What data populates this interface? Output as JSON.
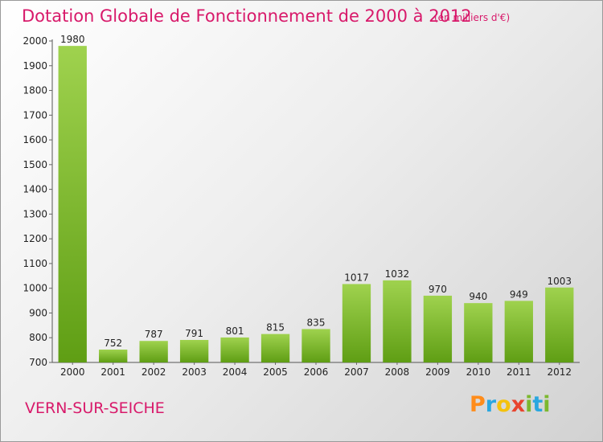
{
  "header": {
    "title": "Dotation Globale de Fonctionnement de 2000 à 2012",
    "unit": "(en milliers d'€)"
  },
  "footer": {
    "commune": "VERN-SUR-SEICHE",
    "brand": {
      "letters": [
        "P",
        "r",
        "o",
        "x",
        "i",
        "t",
        "i"
      ],
      "colors": [
        "#ff8c1a",
        "#2aa7e0",
        "#f4c20d",
        "#e8442e",
        "#7cb82f",
        "#2aa7e0",
        "#7cb82f"
      ]
    }
  },
  "colors": {
    "title": "#d8196a",
    "bar_light": "#9fd24e",
    "bar_dark": "#5f9e14",
    "axis": "#555555",
    "grid_tick": "#666666"
  },
  "chart_data": {
    "type": "bar",
    "title": "Dotation Globale de Fonctionnement de 2000 à 2012",
    "subtitle": "(en milliers d'€)",
    "categories": [
      "2000",
      "2001",
      "2002",
      "2003",
      "2004",
      "2005",
      "2006",
      "2007",
      "2008",
      "2009",
      "2010",
      "2011",
      "2012"
    ],
    "values": [
      1980,
      752,
      787,
      791,
      801,
      815,
      835,
      1017,
      1032,
      970,
      940,
      949,
      1003
    ],
    "data_labels": [
      "1980",
      "752",
      "787",
      "791",
      "801",
      "815",
      "835",
      "1017",
      "1032",
      "970",
      "940",
      "949",
      "1003"
    ],
    "ylim": [
      700,
      2000
    ],
    "yticks": [
      700,
      800,
      900,
      1000,
      1100,
      1200,
      1300,
      1400,
      1500,
      1600,
      1700,
      1800,
      1900,
      2000
    ],
    "ytick_labels": [
      "700",
      "800",
      "900",
      "1000",
      "1100",
      "1200",
      "1300",
      "1400",
      "1500",
      "1600",
      "1700",
      "1800",
      "1900",
      "2000"
    ],
    "grid": false,
    "legend": "none"
  }
}
